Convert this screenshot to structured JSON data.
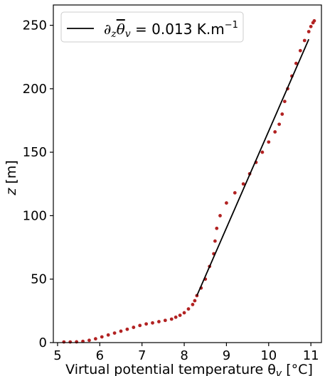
{
  "chart_data": {
    "type": "scatter",
    "xlabel": "Virtual potential temperature θ",
    "xlabel_sub": "v",
    "xlabel_unit": " [°C]",
    "ylabel_var": "z",
    "ylabel_unit": " [m]",
    "xlim": [
      4.9,
      11.25
    ],
    "ylim": [
      0,
      266
    ],
    "x_ticks": [
      5,
      6,
      7,
      8,
      9,
      10,
      11
    ],
    "y_ticks": [
      0,
      50,
      100,
      150,
      200,
      250
    ],
    "grid": false,
    "legend_position": "top-left",
    "legend": {
      "prefix": "∂",
      "sub1": "z",
      "var": "θ",
      "sub2": "v",
      "text": " = 0.013 K.m",
      "sup": "−1"
    },
    "colors": {
      "points": "#b22222",
      "fit": "#000000"
    },
    "fit_line": {
      "name": "linear fit",
      "x": [
        8.3,
        10.95
      ],
      "y": [
        37,
        239
      ]
    },
    "series": [
      {
        "values": [
          [
            5.15,
            0.5
          ],
          [
            5.3,
            0.5
          ],
          [
            5.45,
            0.6
          ],
          [
            5.6,
            1.0
          ],
          [
            5.75,
            1.8
          ],
          [
            5.9,
            3.0
          ],
          [
            6.05,
            4.5
          ],
          [
            6.2,
            6.0
          ],
          [
            6.35,
            7.5
          ],
          [
            6.5,
            9.0
          ],
          [
            6.65,
            10.5
          ],
          [
            6.8,
            12.0
          ],
          [
            6.95,
            13.5
          ],
          [
            7.1,
            14.7
          ],
          [
            7.25,
            15.5
          ],
          [
            7.4,
            16.5
          ],
          [
            7.55,
            17.5
          ],
          [
            7.7,
            18.5
          ],
          [
            7.8,
            20.0
          ],
          [
            7.9,
            21.5
          ],
          [
            8.0,
            23.5
          ],
          [
            8.1,
            26.5
          ],
          [
            8.2,
            30.0
          ],
          [
            8.25,
            33.0
          ],
          [
            8.3,
            37.0
          ],
          [
            8.4,
            43.0
          ],
          [
            8.5,
            50.0
          ],
          [
            8.6,
            60.0
          ],
          [
            8.7,
            70.0
          ],
          [
            8.73,
            80.0
          ],
          [
            8.77,
            90.0
          ],
          [
            8.85,
            100.0
          ],
          [
            9.0,
            110.0
          ],
          [
            9.2,
            118.0
          ],
          [
            9.4,
            125.0
          ],
          [
            9.55,
            133.0
          ],
          [
            9.7,
            142.0
          ],
          [
            9.85,
            150.0
          ],
          [
            10.0,
            158.0
          ],
          [
            10.15,
            166.0
          ],
          [
            10.25,
            172.0
          ],
          [
            10.32,
            180.0
          ],
          [
            10.38,
            190.0
          ],
          [
            10.45,
            200.0
          ],
          [
            10.55,
            210.0
          ],
          [
            10.65,
            220.0
          ],
          [
            10.75,
            230.0
          ],
          [
            10.85,
            238.0
          ],
          [
            10.95,
            245.0
          ],
          [
            11.0,
            249.0
          ],
          [
            11.05,
            252.0
          ],
          [
            11.08,
            253.5
          ]
        ]
      }
    ]
  }
}
